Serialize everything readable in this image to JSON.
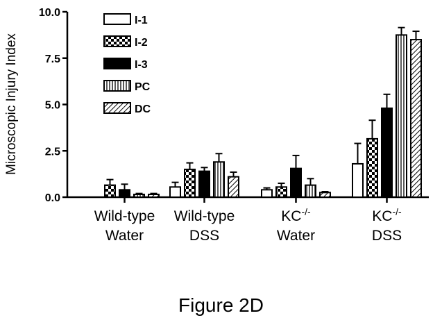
{
  "figure_caption": "Figure 2D",
  "chart_data": {
    "type": "bar",
    "ylabel": "Microscopic Injury Index",
    "ylim": [
      0,
      10
    ],
    "yticks": [
      "0.0",
      "2.5",
      "5.0",
      "7.5",
      "10.0"
    ],
    "categories": [
      {
        "line1": "Wild-type",
        "line2": "Water"
      },
      {
        "line1": "Wild-type",
        "line2": "DSS"
      },
      {
        "line1": "KC",
        "sup": "-/-",
        "line2": "Water"
      },
      {
        "line1": "KC",
        "sup": "-/-",
        "line2": "DSS"
      }
    ],
    "series": [
      {
        "name": "I-1",
        "pattern": "open",
        "values": [
          0.0,
          0.55,
          0.4,
          1.8
        ],
        "errors": [
          0.0,
          0.25,
          0.1,
          1.1
        ]
      },
      {
        "name": "I-2",
        "pattern": "checker",
        "values": [
          0.65,
          1.5,
          0.55,
          3.15
        ],
        "errors": [
          0.3,
          0.35,
          0.2,
          1.0
        ]
      },
      {
        "name": "I-3",
        "pattern": "solid",
        "values": [
          0.4,
          1.4,
          1.55,
          4.8
        ],
        "errors": [
          0.3,
          0.2,
          0.7,
          0.75
        ]
      },
      {
        "name": "PC",
        "pattern": "vertical",
        "values": [
          0.15,
          1.9,
          0.65,
          8.75
        ],
        "errors": [
          0.05,
          0.45,
          0.35,
          0.4
        ]
      },
      {
        "name": "DC",
        "pattern": "diagonal",
        "values": [
          0.15,
          1.1,
          0.25,
          8.5
        ],
        "errors": [
          0.05,
          0.25,
          0.05,
          0.45
        ]
      }
    ],
    "legend": "top-left",
    "grid": false
  }
}
